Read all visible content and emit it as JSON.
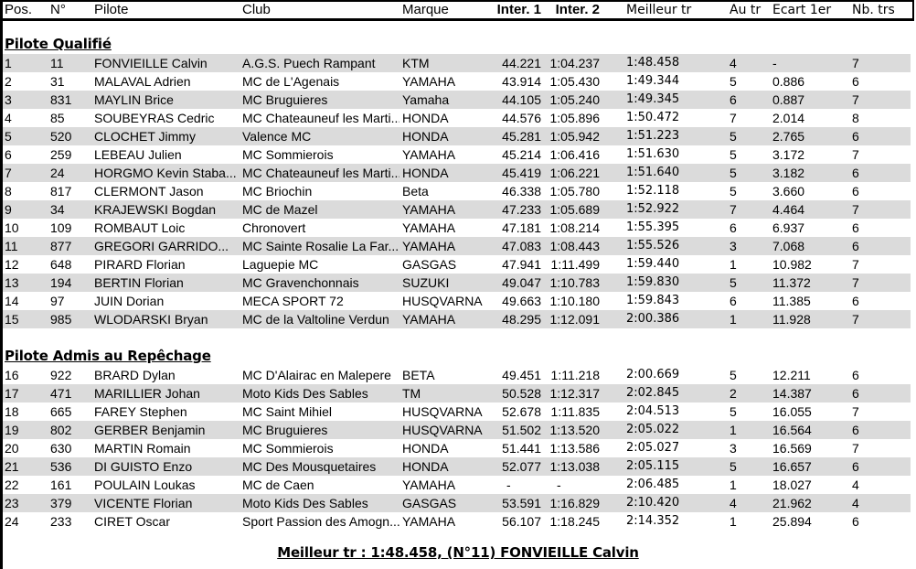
{
  "colors": {
    "stripe": "#dbdbdb",
    "rule": "#000000",
    "text": "#000000",
    "background": "#ffffff"
  },
  "table": {
    "columns": [
      {
        "key": "pos",
        "label": "Pos.",
        "bold": false,
        "alt": false
      },
      {
        "key": "num",
        "label": "N°",
        "bold": false,
        "alt": false
      },
      {
        "key": "pilote",
        "label": "Pilote",
        "bold": false,
        "alt": false
      },
      {
        "key": "club",
        "label": "Club",
        "bold": false,
        "alt": false
      },
      {
        "key": "marque",
        "label": "Marque",
        "bold": false,
        "alt": false
      },
      {
        "key": "inter1",
        "label": "Inter. 1",
        "bold": true,
        "alt": false
      },
      {
        "key": "inter2",
        "label": "Inter. 2",
        "bold": true,
        "alt": false
      },
      {
        "key": "meilleur",
        "label": "Meilleur tr",
        "bold": false,
        "alt": true
      },
      {
        "key": "autr",
        "label": "Au tr",
        "bold": false,
        "alt": true
      },
      {
        "key": "ecart",
        "label": "Ecart 1er",
        "bold": false,
        "alt": true
      },
      {
        "key": "nbtrs",
        "label": "Nb. trs",
        "bold": false,
        "alt": true
      }
    ],
    "sections": [
      {
        "title": "Pilote Qualifié",
        "stripe_start": "gray",
        "rows": [
          [
            "1",
            "11",
            "FONVIEILLE Calvin",
            "A.G.S. Puech Rampant",
            "KTM",
            "44.221",
            "1:04.237",
            "1:48.458",
            "4",
            "-",
            "7"
          ],
          [
            "2",
            "31",
            "MALAVAL Adrien",
            "MC de L'Agenais",
            "YAMAHA",
            "43.914",
            "1:05.430",
            "1:49.344",
            "5",
            "0.886",
            "6"
          ],
          [
            "3",
            "831",
            "MAYLIN Brice",
            "MC Bruguieres",
            "Yamaha",
            "44.105",
            "1:05.240",
            "1:49.345",
            "6",
            "0.887",
            "7"
          ],
          [
            "4",
            "85",
            "SOUBEYRAS Cedric",
            "MC Chateauneuf les Marti...",
            "HONDA",
            "44.576",
            "1:05.896",
            "1:50.472",
            "7",
            "2.014",
            "8"
          ],
          [
            "5",
            "520",
            "CLOCHET Jimmy",
            "Valence MC",
            "HONDA",
            "45.281",
            "1:05.942",
            "1:51.223",
            "5",
            "2.765",
            "6"
          ],
          [
            "6",
            "259",
            "LEBEAU Julien",
            "MC Sommierois",
            "YAMAHA",
            "45.214",
            "1:06.416",
            "1:51.630",
            "5",
            "3.172",
            "7"
          ],
          [
            "7",
            "24",
            "HORGMO Kevin Staba...",
            "MC Chateauneuf les Marti...",
            "HONDA",
            "45.419",
            "1:06.221",
            "1:51.640",
            "5",
            "3.182",
            "6"
          ],
          [
            "8",
            "817",
            "CLERMONT Jason",
            "MC Briochin",
            "Beta",
            "46.338",
            "1:05.780",
            "1:52.118",
            "5",
            "3.660",
            "6"
          ],
          [
            "9",
            "34",
            "KRAJEWSKI Bogdan",
            "MC de Mazel",
            "YAMAHA",
            "47.233",
            "1:05.689",
            "1:52.922",
            "7",
            "4.464",
            "7"
          ],
          [
            "10",
            "109",
            "ROMBAUT Loic",
            "Chronovert",
            "YAMAHA",
            "47.181",
            "1:08.214",
            "1:55.395",
            "6",
            "6.937",
            "6"
          ],
          [
            "11",
            "877",
            "GREGORI GARRIDO...",
            "MC Sainte Rosalie La Far...",
            "YAMAHA",
            "47.083",
            "1:08.443",
            "1:55.526",
            "3",
            "7.068",
            "6"
          ],
          [
            "12",
            "648",
            "PIRARD Florian",
            "Laguepie MC",
            "GASGAS",
            "47.941",
            "1:11.499",
            "1:59.440",
            "1",
            "10.982",
            "7"
          ],
          [
            "13",
            "194",
            "BERTIN Florian",
            "MC Gravenchonnais",
            "SUZUKI",
            "49.047",
            "1:10.783",
            "1:59.830",
            "5",
            "11.372",
            "7"
          ],
          [
            "14",
            "97",
            "JUIN Dorian",
            "MECA SPORT 72",
            "HUSQVARNA",
            "49.663",
            "1:10.180",
            "1:59.843",
            "6",
            "11.385",
            "6"
          ],
          [
            "15",
            "985",
            "WLODARSKI Bryan",
            "MC de la Valtoline Verdun",
            "YAMAHA",
            "48.295",
            "1:12.091",
            "2:00.386",
            "1",
            "11.928",
            "7"
          ]
        ]
      },
      {
        "title": "Pilote Admis au Repêchage",
        "stripe_start": "white",
        "rows": [
          [
            "16",
            "922",
            "BRARD Dylan",
            "MC D'Alairac en Malepere",
            "BETA",
            "49.451",
            "1:11.218",
            "2:00.669",
            "5",
            "12.211",
            "6"
          ],
          [
            "17",
            "471",
            "MARILLIER Johan",
            "Moto Kids Des Sables",
            "TM",
            "50.528",
            "1:12.317",
            "2:02.845",
            "2",
            "14.387",
            "6"
          ],
          [
            "18",
            "665",
            "FAREY Stephen",
            "MC Saint Mihiel",
            "HUSQVARNA",
            "52.678",
            "1:11.835",
            "2:04.513",
            "5",
            "16.055",
            "7"
          ],
          [
            "19",
            "802",
            "GERBER Benjamin",
            "MC Bruguieres",
            "HUSQVARNA",
            "51.502",
            "1:13.520",
            "2:05.022",
            "1",
            "16.564",
            "6"
          ],
          [
            "20",
            "630",
            "MARTIN Romain",
            "MC Sommierois",
            "HONDA",
            "51.441",
            "1:13.586",
            "2:05.027",
            "3",
            "16.569",
            "7"
          ],
          [
            "21",
            "536",
            "DI GUISTO Enzo",
            "MC Des Mousquetaires",
            "HONDA",
            "52.077",
            "1:13.038",
            "2:05.115",
            "5",
            "16.657",
            "6"
          ],
          [
            "22",
            "161",
            "POULAIN Loukas",
            "MC de Caen",
            "YAMAHA",
            "-",
            "-",
            "2:06.485",
            "1",
            "18.027",
            "4"
          ],
          [
            "23",
            "379",
            "VICENTE Florian",
            "Moto Kids Des Sables",
            "GASGAS",
            "53.591",
            "1:16.829",
            "2:10.420",
            "4",
            "21.962",
            "4"
          ],
          [
            "24",
            "233",
            "CIRET Oscar",
            "Sport Passion des Amogn...",
            "YAMAHA",
            "56.107",
            "1:18.245",
            "2:14.352",
            "1",
            "25.894",
            "6"
          ]
        ]
      }
    ],
    "footer": "Meilleur tr : 1:48.458, (N°11) FONVIEILLE Calvin"
  }
}
